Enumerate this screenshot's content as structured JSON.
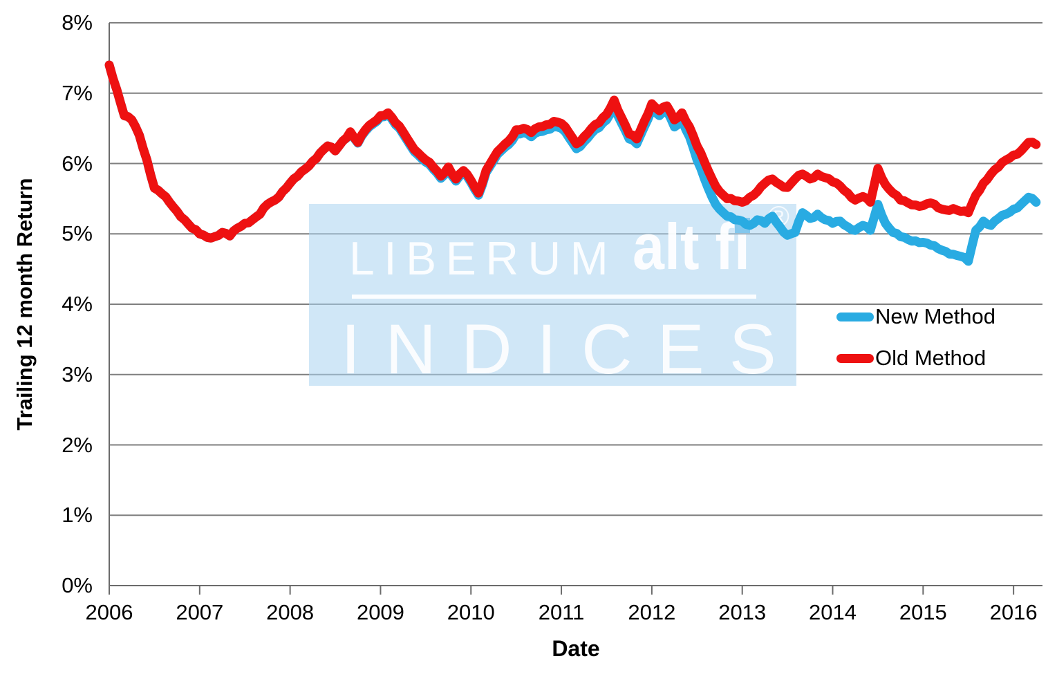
{
  "axes": {
    "y_title": "Trailing 12 month Return",
    "x_title": "Date",
    "y_tick_labels": [
      "0%",
      "1%",
      "2%",
      "3%",
      "4%",
      "5%",
      "6%",
      "7%",
      "8%"
    ],
    "x_tick_labels": [
      "2006",
      "2007",
      "2008",
      "2009",
      "2010",
      "2011",
      "2012",
      "2013",
      "2014",
      "2015",
      "2016"
    ]
  },
  "watermark": {
    "brand_left": "LIBERUM",
    "brand_right": "alt fi",
    "subtitle": "INDICES",
    "registered_symbol": "®"
  },
  "style": {
    "gridline_color": "#7f7f7f",
    "axis_color": "#6b6b6b",
    "background": "#ffffff"
  },
  "chart_data": {
    "type": "line",
    "title": "",
    "xlabel": "Date",
    "ylabel": "Trailing 12 month Return",
    "xlim": [
      2006.0,
      2016.32
    ],
    "ylim": [
      0,
      8
    ],
    "grid": "horizontal",
    "legend_position": "right-middle",
    "x_start": 2006.0,
    "x_step_months": 1,
    "x_unit": "decimal-year, monthly samples Jan-2006 through Apr-2016",
    "y_unit": "percent",
    "series": [
      {
        "name": "New Method",
        "color": "#29ABE2",
        "values": [
          7.4,
          7.05,
          6.68,
          6.62,
          6.4,
          6.05,
          5.65,
          5.57,
          5.45,
          5.32,
          5.2,
          5.08,
          5.0,
          4.95,
          4.96,
          5.02,
          4.97,
          5.08,
          5.15,
          5.2,
          5.28,
          5.42,
          5.48,
          5.6,
          5.72,
          5.82,
          5.92,
          6.03,
          6.15,
          6.25,
          6.18,
          6.32,
          6.44,
          6.29,
          6.46,
          6.56,
          6.66,
          6.7,
          6.55,
          6.42,
          6.25,
          6.12,
          6.02,
          5.92,
          5.79,
          5.92,
          5.75,
          5.87,
          5.73,
          5.55,
          5.87,
          6.04,
          6.18,
          6.27,
          6.42,
          6.44,
          6.38,
          6.45,
          6.48,
          6.53,
          6.5,
          6.37,
          6.21,
          6.31,
          6.43,
          6.51,
          6.62,
          6.82,
          6.57,
          6.35,
          6.28,
          6.52,
          6.78,
          6.68,
          6.75,
          6.52,
          6.62,
          6.38,
          6.05,
          5.78,
          5.52,
          5.35,
          5.25,
          5.2,
          5.18,
          5.12,
          5.2,
          5.15,
          5.25,
          5.1,
          4.98,
          5.02,
          5.3,
          5.22,
          5.28,
          5.2,
          5.15,
          5.18,
          5.1,
          5.05,
          5.12,
          5.05,
          5.42,
          5.15,
          5.02,
          4.96,
          4.92,
          4.9,
          4.88,
          4.84,
          4.79,
          4.75,
          4.71,
          4.68,
          4.61,
          5.05,
          5.18,
          5.12,
          5.22,
          5.28,
          5.35,
          5.42,
          5.52,
          5.45
        ]
      },
      {
        "name": "Old Method",
        "color": "#EE1111",
        "values": [
          7.4,
          7.05,
          6.68,
          6.62,
          6.4,
          6.05,
          5.65,
          5.57,
          5.45,
          5.32,
          5.2,
          5.08,
          5.0,
          4.95,
          4.96,
          5.02,
          4.97,
          5.08,
          5.15,
          5.2,
          5.28,
          5.42,
          5.48,
          5.6,
          5.72,
          5.82,
          5.92,
          6.03,
          6.15,
          6.25,
          6.18,
          6.32,
          6.45,
          6.3,
          6.48,
          6.58,
          6.68,
          6.72,
          6.58,
          6.45,
          6.28,
          6.15,
          6.05,
          5.95,
          5.82,
          5.95,
          5.78,
          5.9,
          5.76,
          5.58,
          5.9,
          6.08,
          6.22,
          6.32,
          6.48,
          6.5,
          6.44,
          6.52,
          6.55,
          6.6,
          6.57,
          6.44,
          6.28,
          6.38,
          6.5,
          6.58,
          6.7,
          6.9,
          6.65,
          6.42,
          6.35,
          6.6,
          6.85,
          6.75,
          6.82,
          6.62,
          6.72,
          6.52,
          6.25,
          6.02,
          5.78,
          5.6,
          5.5,
          5.47,
          5.45,
          5.52,
          5.6,
          5.72,
          5.78,
          5.7,
          5.66,
          5.78,
          5.85,
          5.78,
          5.85,
          5.8,
          5.74,
          5.68,
          5.58,
          5.48,
          5.53,
          5.45,
          5.93,
          5.7,
          5.58,
          5.48,
          5.44,
          5.41,
          5.4,
          5.44,
          5.37,
          5.34,
          5.36,
          5.32,
          5.3,
          5.55,
          5.72,
          5.85,
          5.95,
          6.05,
          6.12,
          6.18,
          6.3,
          6.27
        ]
      }
    ]
  }
}
